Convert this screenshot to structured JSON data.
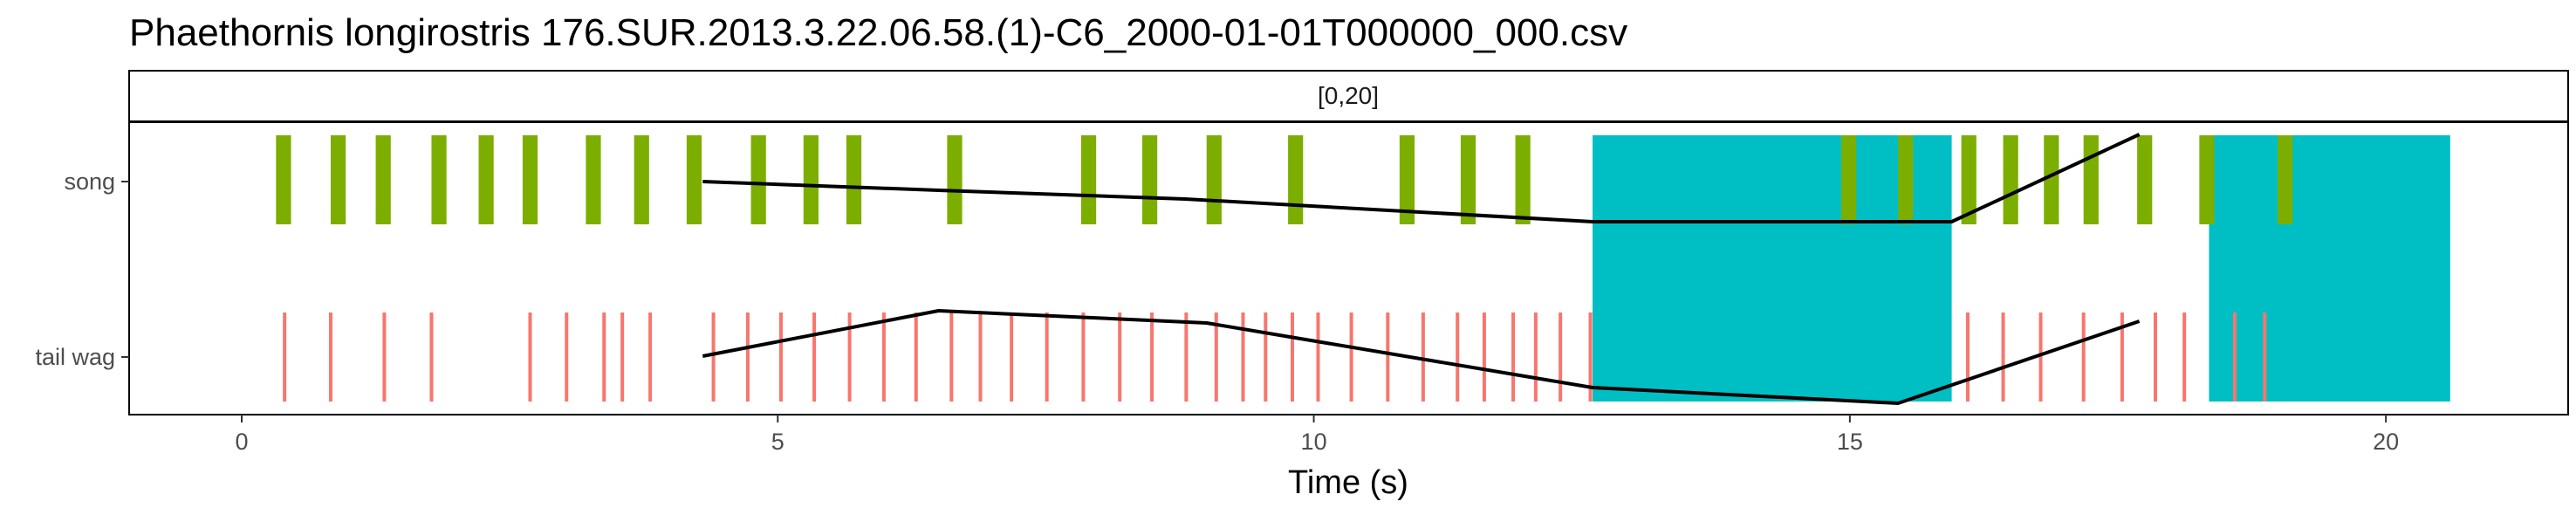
{
  "chart_data": {
    "type": "event_timeline",
    "title": "Phaethornis longirostris   176.SUR.2013.3.22.06.58.(1)-C6_2000-01-01T000000_000.csv",
    "facet_label": "[0,20]",
    "xlabel": "Time (s)",
    "ylabel": "",
    "xlim": [
      -1.05,
      21.7
    ],
    "x_ticks": [
      0,
      5,
      10,
      15,
      20
    ],
    "x_tick_labels": [
      "0",
      "5",
      "10",
      "15",
      "20"
    ],
    "categories": [
      "song",
      "tail wag"
    ],
    "grid": false,
    "legend": "none",
    "colors": {
      "song": "#7cae00",
      "tail_wag": "#f8766d",
      "highlight": "#00bfc4",
      "line": "#000000",
      "panel_border": "#000000"
    },
    "song_events": [
      {
        "start": 0.32,
        "end": 0.46
      },
      {
        "start": 0.83,
        "end": 0.97
      },
      {
        "start": 1.25,
        "end": 1.39
      },
      {
        "start": 1.77,
        "end": 1.91
      },
      {
        "start": 2.21,
        "end": 2.35
      },
      {
        "start": 2.62,
        "end": 2.76
      },
      {
        "start": 3.21,
        "end": 3.35
      },
      {
        "start": 3.66,
        "end": 3.8
      },
      {
        "start": 4.15,
        "end": 4.29
      },
      {
        "start": 4.75,
        "end": 4.89
      },
      {
        "start": 5.24,
        "end": 5.38
      },
      {
        "start": 5.64,
        "end": 5.78
      },
      {
        "start": 6.58,
        "end": 6.72
      },
      {
        "start": 7.83,
        "end": 7.97
      },
      {
        "start": 8.4,
        "end": 8.54
      },
      {
        "start": 9.0,
        "end": 9.14
      },
      {
        "start": 9.76,
        "end": 9.9
      },
      {
        "start": 10.8,
        "end": 10.94
      },
      {
        "start": 11.37,
        "end": 11.51
      },
      {
        "start": 11.88,
        "end": 12.02
      },
      {
        "start": 14.92,
        "end": 15.06
      },
      {
        "start": 15.45,
        "end": 15.59
      },
      {
        "start": 16.04,
        "end": 16.18
      },
      {
        "start": 16.43,
        "end": 16.57
      },
      {
        "start": 16.81,
        "end": 16.95
      },
      {
        "start": 17.18,
        "end": 17.32
      },
      {
        "start": 17.68,
        "end": 17.82
      },
      {
        "start": 18.26,
        "end": 18.4
      },
      {
        "start": 18.99,
        "end": 19.13
      }
    ],
    "tail_wag_events": [
      0.4,
      0.83,
      1.33,
      1.77,
      2.69,
      3.03,
      3.38,
      3.55,
      3.81,
      4.4,
      4.72,
      5.03,
      5.34,
      5.67,
      5.99,
      6.29,
      6.62,
      6.89,
      7.18,
      7.51,
      7.85,
      8.19,
      8.49,
      8.81,
      9.09,
      9.34,
      9.55,
      9.8,
      10.04,
      10.35,
      10.69,
      11.02,
      11.34,
      11.59,
      11.86,
      12.07,
      12.3,
      12.58,
      16.1,
      16.43,
      16.78,
      17.18,
      17.54,
      17.85,
      18.12,
      18.59,
      18.87
    ],
    "highlight_regions": [
      {
        "start": 12.6,
        "end": 15.95
      },
      {
        "start": 18.35,
        "end": 20.6
      }
    ],
    "lines": [
      {
        "name": "song",
        "points": [
          [
            4.3,
            1.0
          ],
          [
            6.5,
            0.95
          ],
          [
            8.8,
            0.9
          ],
          [
            12.6,
            0.77
          ],
          [
            15.95,
            0.77
          ],
          [
            17.7,
            1.27
          ]
        ]
      },
      {
        "name": "tail wag",
        "points": [
          [
            4.3,
            0.0
          ],
          [
            6.5,
            0.26
          ],
          [
            9.0,
            0.19
          ],
          [
            12.6,
            -0.18
          ],
          [
            15.45,
            -0.27
          ],
          [
            17.7,
            0.2
          ]
        ]
      }
    ]
  }
}
